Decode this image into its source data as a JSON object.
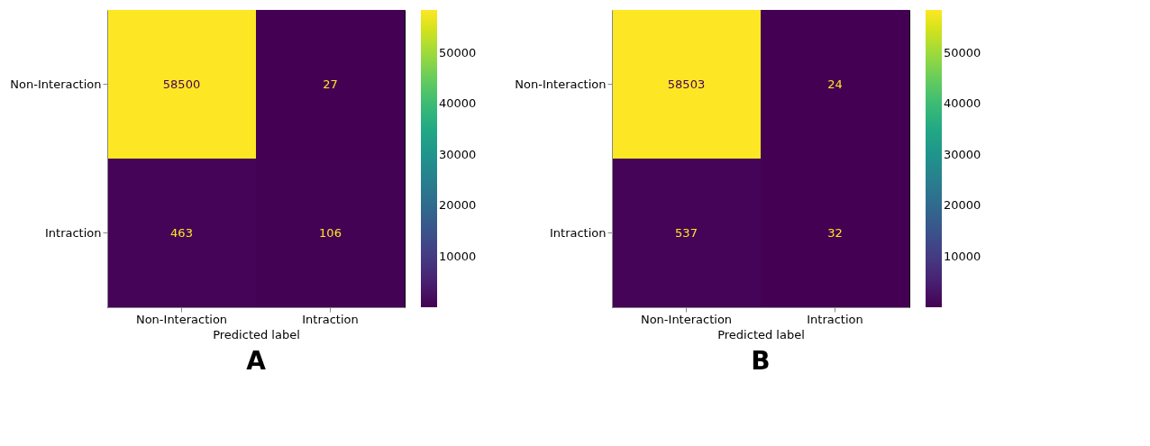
{
  "chart_data": [
    {
      "type": "heatmap",
      "title": "A",
      "xlabel": "Predicted label",
      "categories": [
        "Non-Interaction",
        "Intraction"
      ],
      "y_categories": [
        "Non-Interaction",
        "Intraction"
      ],
      "cells": [
        [
          58500,
          27
        ],
        [
          463,
          106
        ]
      ],
      "data_labels": true,
      "clim": [
        27,
        58500
      ],
      "cticks": [
        10000,
        20000,
        30000,
        40000,
        50000
      ],
      "grid": false
    },
    {
      "type": "heatmap",
      "title": "B",
      "xlabel": "Predicted label",
      "categories": [
        "Non-Interaction",
        "Intraction"
      ],
      "y_categories": [
        "Non-Interaction",
        "Intraction"
      ],
      "cells": [
        [
          58503,
          24
        ],
        [
          537,
          32
        ]
      ],
      "data_labels": true,
      "clim": [
        24,
        58503
      ],
      "cticks": [
        10000,
        20000,
        30000,
        40000,
        50000
      ],
      "grid": false
    }
  ]
}
